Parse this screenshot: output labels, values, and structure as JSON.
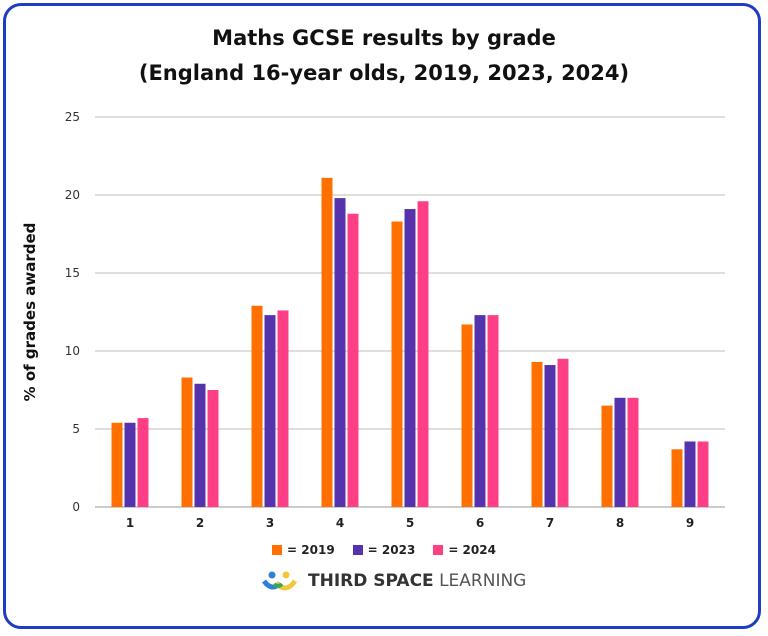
{
  "chart_data": {
    "type": "bar",
    "title_line1": "Maths GCSE results by grade",
    "title_line2": "(England 16-year olds, 2019, 2023, 2024)",
    "xlabel": "",
    "ylabel": "% of grades awarded",
    "ylim": [
      0,
      25
    ],
    "yticks": [
      0,
      5,
      10,
      15,
      20,
      25
    ],
    "grid": true,
    "legend_placement": "bottom",
    "categories": [
      "1",
      "2",
      "3",
      "4",
      "5",
      "6",
      "7",
      "8",
      "9"
    ],
    "series": [
      {
        "name": "= 2019",
        "color": "#ff7000",
        "values": [
          5.4,
          8.3,
          12.9,
          21.1,
          18.3,
          11.7,
          9.3,
          6.5,
          3.7
        ]
      },
      {
        "name": "= 2023",
        "color": "#5533ad",
        "values": [
          5.4,
          7.9,
          12.3,
          19.8,
          19.1,
          12.3,
          9.1,
          7.0,
          4.2
        ]
      },
      {
        "name": "= 2024",
        "color": "#ff3f85",
        "values": [
          5.7,
          7.5,
          12.6,
          18.8,
          19.6,
          12.3,
          9.5,
          7.0,
          4.2
        ]
      }
    ]
  },
  "brand": {
    "bold": "THIRD SPACE",
    "light": "LEARNING"
  },
  "colors": {
    "frame": "#1f3cc2",
    "grid": "#bdbdbd"
  }
}
